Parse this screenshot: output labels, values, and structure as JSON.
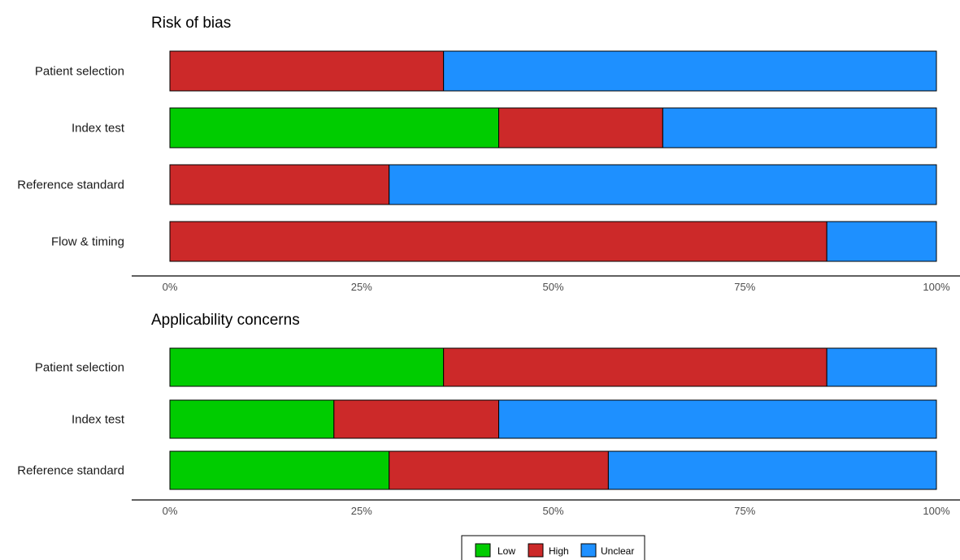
{
  "chart_data": [
    {
      "type": "bar",
      "orientation": "horizontal",
      "stacked": true,
      "title": "Risk of bias",
      "categories": [
        "Patient selection",
        "Index test",
        "Reference standard",
        "Flow & timing"
      ],
      "series": [
        {
          "name": "Low",
          "color": "#00cc00",
          "values": [
            0,
            42.9,
            0,
            0
          ]
        },
        {
          "name": "High",
          "color": "#cc2929",
          "values": [
            35.7,
            21.4,
            28.6,
            85.7
          ]
        },
        {
          "name": "Unclear",
          "color": "#1e90ff",
          "values": [
            64.3,
            35.7,
            71.4,
            14.3
          ]
        }
      ],
      "xlim": [
        0,
        100
      ],
      "ticks": [
        "0%",
        "25%",
        "50%",
        "75%",
        "100%"
      ],
      "grid": false
    },
    {
      "type": "bar",
      "orientation": "horizontal",
      "stacked": true,
      "title": "Applicability concerns",
      "categories": [
        "Patient selection",
        "Index test",
        "Reference standard"
      ],
      "series": [
        {
          "name": "Low",
          "color": "#00cc00",
          "values": [
            35.7,
            21.4,
            28.6
          ]
        },
        {
          "name": "High",
          "color": "#cc2929",
          "values": [
            50.0,
            21.5,
            28.6
          ]
        },
        {
          "name": "Unclear",
          "color": "#1e90ff",
          "values": [
            14.3,
            57.1,
            42.8
          ]
        }
      ],
      "xlim": [
        0,
        100
      ],
      "ticks": [
        "0%",
        "25%",
        "50%",
        "75%",
        "100%"
      ],
      "grid": false
    }
  ],
  "legend": {
    "position": "bottom",
    "items": [
      {
        "label": "Low",
        "color": "#00cc00"
      },
      {
        "label": "High",
        "color": "#cc2929"
      },
      {
        "label": "Unclear",
        "color": "#1e90ff"
      }
    ]
  }
}
